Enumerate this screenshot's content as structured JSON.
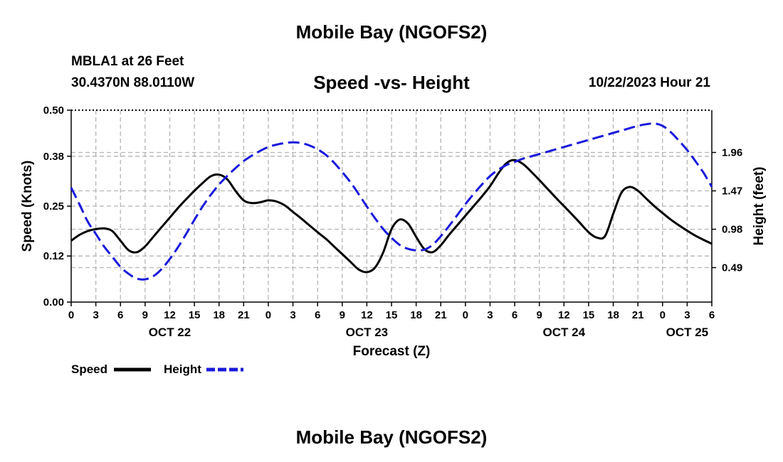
{
  "title": "Mobile Bay (NGOFS2)",
  "station": "MBLA1 at 26 Feet",
  "coords": "30.4370N  88.0110W",
  "subtitle": "Speed -vs- Height",
  "timestamp": "10/22/2023 Hour 21",
  "footer_title": "Mobile Bay (NGOFS2)",
  "chart_data": {
    "type": "line",
    "xlabel": "Forecast (Z)",
    "ylabel": "Speed (Knots)",
    "y2label": "Height (feet)",
    "x_range_hours": [
      0,
      78
    ],
    "ylim": [
      0,
      0.5
    ],
    "y2lim": [
      0.05,
      2.5
    ],
    "x_tick_hours": [
      0,
      3,
      6,
      9,
      12,
      15,
      18,
      21,
      24,
      27,
      30,
      33,
      36,
      39,
      42,
      45,
      48,
      51,
      54,
      57,
      60,
      63,
      66,
      69,
      72,
      75,
      78
    ],
    "x_tick_labels": [
      "0",
      "3",
      "6",
      "9",
      "12",
      "15",
      "18",
      "21",
      "0",
      "3",
      "6",
      "9",
      "12",
      "15",
      "18",
      "21",
      "0",
      "3",
      "6",
      "9",
      "12",
      "15",
      "18",
      "21",
      "0",
      "3",
      "6"
    ],
    "y_ticks": [
      0.0,
      0.12,
      0.25,
      0.38,
      0.5
    ],
    "y_tick_labels": [
      "0.00",
      "0.12",
      "0.25",
      "0.38",
      "0.50"
    ],
    "y2_ticks": [
      0.49,
      0.98,
      1.47,
      1.96
    ],
    "y2_tick_labels": [
      "0.49",
      "0.98",
      "1.47",
      "1.96"
    ],
    "date_labels": [
      {
        "hour": 12,
        "label": "OCT 22"
      },
      {
        "hour": 36,
        "label": "OCT 23"
      },
      {
        "hour": 60,
        "label": "OCT 24"
      },
      {
        "hour": 75,
        "label": "OCT 25"
      }
    ],
    "series": [
      {
        "name": "Speed",
        "axis": "left",
        "color": "#000000",
        "style": "solid",
        "x": [
          0,
          1,
          2,
          3,
          4,
          5,
          6,
          7,
          8,
          9,
          10,
          11,
          12,
          13,
          14,
          15,
          16,
          17,
          18,
          19,
          20,
          21,
          22,
          23,
          24,
          25,
          26,
          27,
          28,
          29,
          30,
          31,
          32,
          33,
          34,
          35,
          36,
          37,
          38,
          39,
          40,
          41,
          42,
          43,
          44,
          45,
          46,
          47,
          48,
          49,
          50,
          51,
          52,
          53,
          54,
          55,
          56,
          57,
          58,
          59,
          60,
          61,
          62,
          63,
          64,
          65,
          66,
          67,
          68,
          69,
          70,
          71,
          72,
          73,
          74,
          75,
          76,
          77,
          78
        ],
        "values": [
          0.16,
          0.175,
          0.185,
          0.19,
          0.192,
          0.185,
          0.16,
          0.135,
          0.13,
          0.145,
          0.17,
          0.195,
          0.22,
          0.245,
          0.268,
          0.29,
          0.31,
          0.328,
          0.332,
          0.32,
          0.29,
          0.265,
          0.258,
          0.26,
          0.265,
          0.262,
          0.252,
          0.235,
          0.218,
          0.2,
          0.182,
          0.165,
          0.145,
          0.125,
          0.105,
          0.085,
          0.078,
          0.09,
          0.13,
          0.19,
          0.215,
          0.205,
          0.17,
          0.138,
          0.13,
          0.148,
          0.175,
          0.2,
          0.225,
          0.25,
          0.275,
          0.302,
          0.335,
          0.362,
          0.37,
          0.36,
          0.34,
          0.318,
          0.295,
          0.272,
          0.25,
          0.228,
          0.205,
          0.182,
          0.168,
          0.172,
          0.23,
          0.285,
          0.3,
          0.29,
          0.27,
          0.25,
          0.232,
          0.215,
          0.2,
          0.186,
          0.173,
          0.162,
          0.152
        ]
      },
      {
        "name": "Height",
        "axis": "right",
        "color": "#1a1adb",
        "style": "dashed",
        "x": [
          0,
          1,
          2,
          3,
          4,
          5,
          6,
          7,
          8,
          9,
          10,
          11,
          12,
          13,
          14,
          15,
          16,
          17,
          18,
          19,
          20,
          21,
          22,
          23,
          24,
          25,
          26,
          27,
          28,
          29,
          30,
          31,
          32,
          33,
          34,
          35,
          36,
          37,
          38,
          39,
          40,
          41,
          42,
          43,
          44,
          45,
          46,
          47,
          48,
          49,
          50,
          51,
          52,
          53,
          54,
          55,
          56,
          57,
          58,
          59,
          60,
          61,
          62,
          63,
          64,
          65,
          66,
          67,
          68,
          69,
          70,
          71,
          72,
          73,
          74,
          75,
          76,
          77,
          78
        ],
        "values": [
          1.51,
          1.3,
          1.08,
          0.92,
          0.76,
          0.63,
          0.5,
          0.41,
          0.35,
          0.34,
          0.38,
          0.47,
          0.6,
          0.75,
          0.92,
          1.1,
          1.27,
          1.42,
          1.55,
          1.66,
          1.76,
          1.85,
          1.92,
          1.98,
          2.03,
          2.06,
          2.08,
          2.09,
          2.08,
          2.05,
          2.0,
          1.93,
          1.83,
          1.71,
          1.58,
          1.43,
          1.27,
          1.12,
          0.98,
          0.87,
          0.78,
          0.73,
          0.71,
          0.72,
          0.78,
          0.89,
          1.02,
          1.16,
          1.3,
          1.43,
          1.55,
          1.66,
          1.74,
          1.8,
          1.84,
          1.88,
          1.91,
          1.94,
          1.97,
          2.0,
          2.03,
          2.06,
          2.09,
          2.12,
          2.15,
          2.18,
          2.21,
          2.24,
          2.27,
          2.3,
          2.32,
          2.33,
          2.3,
          2.22,
          2.11,
          1.99,
          1.85,
          1.7,
          1.52
        ]
      }
    ],
    "legend": [
      {
        "label": "Speed",
        "color": "#000000",
        "style": "solid"
      },
      {
        "label": "Height",
        "color": "#1a1adb",
        "style": "dashed"
      }
    ]
  }
}
